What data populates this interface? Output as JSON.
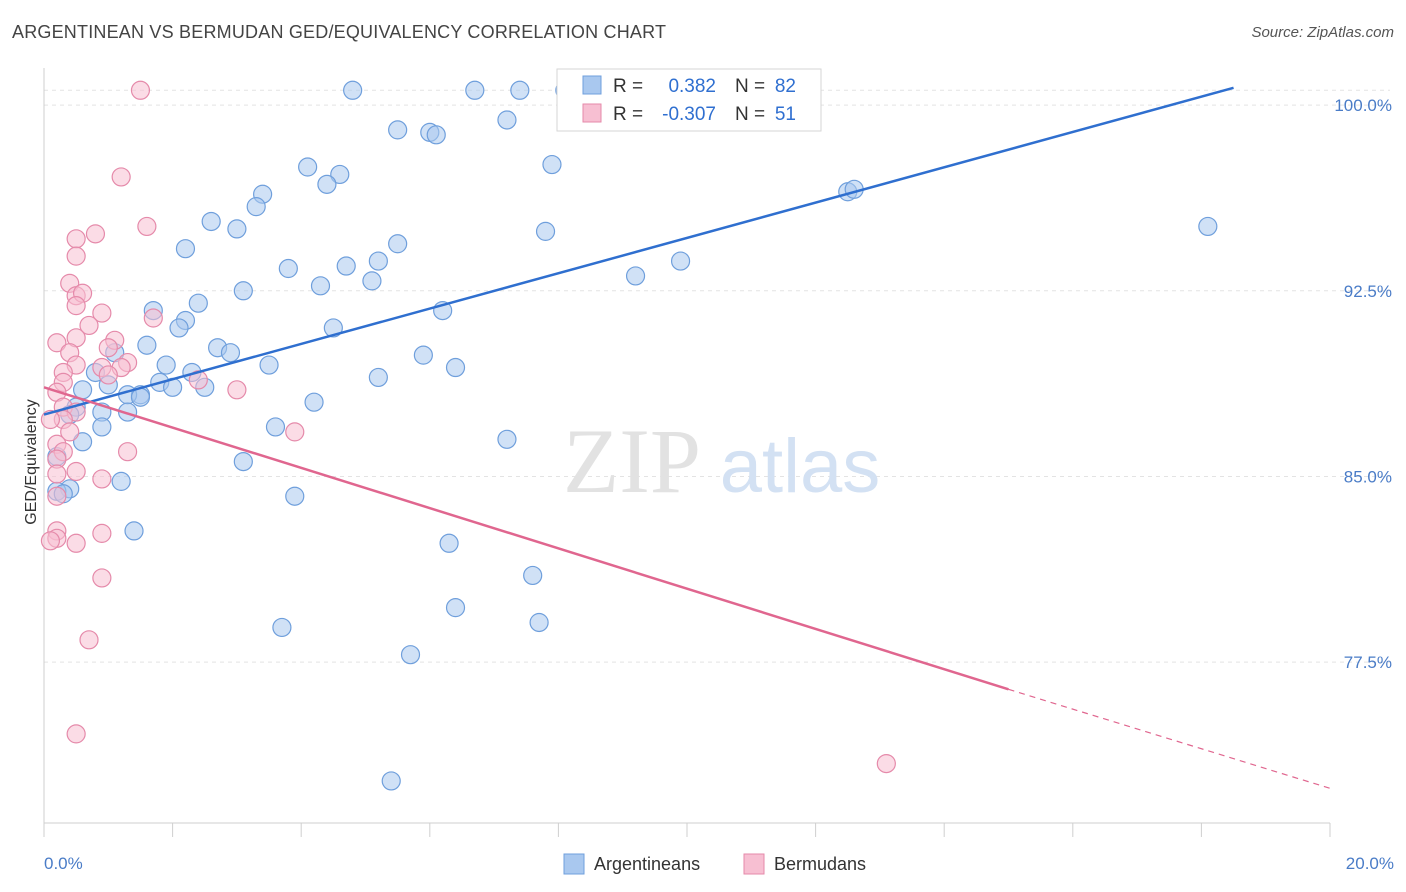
{
  "title": "ARGENTINEAN VS BERMUDAN GED/EQUIVALENCY CORRELATION CHART",
  "source": "Source: ZipAtlas.com",
  "watermark": {
    "zip": "ZIP",
    "atlas": "atlas"
  },
  "colors": {
    "blue_fill": "#a9c8ef",
    "blue_stroke": "#6f9fdc",
    "blue_line": "#2f6fcf",
    "pink_fill": "#f7bfd2",
    "pink_stroke": "#e58aaa",
    "pink_line": "#e0668f",
    "tick_label": "#4a7cc7"
  },
  "legend": {
    "rows": [
      {
        "r_label": "R =",
        "r_value": "0.382",
        "n_label": "N =",
        "n_value": "82"
      },
      {
        "r_label": "R =",
        "r_value": "-0.307",
        "n_label": "N =",
        "n_value": "51"
      }
    ]
  },
  "bottom_legend": [
    "Argentineans",
    "Bermudans"
  ],
  "chart_data": {
    "type": "scatter",
    "title": "ARGENTINEAN VS BERMUDAN GED/EQUIVALENCY CORRELATION CHART",
    "xlabel": "",
    "ylabel": "GED/Equivalency",
    "xlim": [
      0,
      20
    ],
    "ylim": [
      71,
      101.5
    ],
    "x_tick_labels": [
      "0.0%",
      "20.0%"
    ],
    "y_ticks": [
      77.5,
      85.0,
      92.5,
      100.0
    ],
    "y_tick_labels": [
      "77.5%",
      "85.0%",
      "92.5%",
      "100.0%"
    ],
    "grid": "horizontal dashed",
    "legend_placement": "top-center",
    "series": [
      {
        "name": "Argentineans",
        "r": 0.382,
        "n": 82,
        "trend": {
          "x": [
            0,
            18.5
          ],
          "y": [
            87.5,
            100.7
          ]
        },
        "points": [
          [
            4.8,
            100.6
          ],
          [
            6.7,
            100.6
          ],
          [
            7.4,
            100.6
          ],
          [
            8.1,
            100.6
          ],
          [
            8.6,
            100.6
          ],
          [
            9.0,
            100.6
          ],
          [
            9.5,
            100.6
          ],
          [
            5.5,
            99.0
          ],
          [
            6.0,
            98.9
          ],
          [
            6.1,
            98.8
          ],
          [
            7.2,
            99.4
          ],
          [
            4.1,
            97.5
          ],
          [
            4.6,
            97.2
          ],
          [
            7.9,
            97.6
          ],
          [
            4.4,
            96.8
          ],
          [
            3.4,
            96.4
          ],
          [
            3.3,
            95.9
          ],
          [
            12.5,
            96.5
          ],
          [
            12.6,
            96.6
          ],
          [
            2.6,
            95.3
          ],
          [
            3.0,
            95.0
          ],
          [
            7.8,
            94.9
          ],
          [
            18.1,
            95.1
          ],
          [
            2.2,
            94.2
          ],
          [
            5.5,
            94.4
          ],
          [
            3.8,
            93.4
          ],
          [
            4.7,
            93.5
          ],
          [
            5.2,
            93.7
          ],
          [
            9.9,
            93.7
          ],
          [
            5.1,
            92.9
          ],
          [
            3.1,
            92.5
          ],
          [
            4.3,
            92.7
          ],
          [
            9.2,
            93.1
          ],
          [
            2.4,
            92.0
          ],
          [
            2.2,
            91.3
          ],
          [
            6.2,
            91.7
          ],
          [
            1.7,
            91.7
          ],
          [
            2.1,
            91.0
          ],
          [
            4.5,
            91.0
          ],
          [
            1.6,
            90.3
          ],
          [
            2.7,
            90.2
          ],
          [
            2.9,
            90.0
          ],
          [
            5.9,
            89.9
          ],
          [
            1.1,
            90.0
          ],
          [
            1.9,
            89.5
          ],
          [
            3.5,
            89.5
          ],
          [
            6.4,
            89.4
          ],
          [
            0.8,
            89.2
          ],
          [
            2.3,
            89.2
          ],
          [
            5.2,
            89.0
          ],
          [
            1.8,
            88.8
          ],
          [
            2.5,
            88.6
          ],
          [
            0.6,
            88.5
          ],
          [
            1.0,
            88.7
          ],
          [
            1.5,
            88.3
          ],
          [
            2.0,
            88.6
          ],
          [
            1.3,
            88.3
          ],
          [
            4.2,
            88.0
          ],
          [
            1.5,
            88.2
          ],
          [
            0.5,
            87.8
          ],
          [
            1.3,
            87.6
          ],
          [
            0.9,
            87.6
          ],
          [
            0.4,
            87.5
          ],
          [
            3.6,
            87.0
          ],
          [
            0.9,
            87.0
          ],
          [
            7.2,
            86.5
          ],
          [
            0.6,
            86.4
          ],
          [
            0.2,
            85.8
          ],
          [
            3.1,
            85.6
          ],
          [
            1.2,
            84.8
          ],
          [
            0.4,
            84.5
          ],
          [
            0.2,
            84.4
          ],
          [
            0.3,
            84.3
          ],
          [
            3.9,
            84.2
          ],
          [
            1.4,
            82.8
          ],
          [
            6.3,
            82.3
          ],
          [
            7.6,
            81.0
          ],
          [
            6.4,
            79.7
          ],
          [
            7.7,
            79.1
          ],
          [
            3.7,
            78.9
          ],
          [
            5.7,
            77.8
          ],
          [
            5.4,
            72.7
          ]
        ]
      },
      {
        "name": "Bermudans",
        "r": -0.307,
        "n": 51,
        "trend": {
          "x": [
            0,
            15
          ],
          "y": [
            88.6,
            76.4
          ]
        },
        "trend_dashed": {
          "x": [
            15,
            20
          ],
          "y": [
            76.4,
            72.4
          ]
        },
        "points": [
          [
            1.5,
            100.6
          ],
          [
            1.2,
            97.1
          ],
          [
            1.6,
            95.1
          ],
          [
            0.5,
            94.6
          ],
          [
            0.8,
            94.8
          ],
          [
            0.5,
            93.9
          ],
          [
            0.4,
            92.8
          ],
          [
            0.5,
            92.3
          ],
          [
            0.6,
            92.4
          ],
          [
            0.5,
            91.9
          ],
          [
            0.9,
            91.6
          ],
          [
            0.7,
            91.1
          ],
          [
            0.5,
            90.6
          ],
          [
            0.2,
            90.4
          ],
          [
            1.1,
            90.5
          ],
          [
            1.7,
            91.4
          ],
          [
            0.4,
            90.0
          ],
          [
            1.0,
            90.2
          ],
          [
            0.5,
            89.5
          ],
          [
            1.3,
            89.6
          ],
          [
            0.3,
            89.2
          ],
          [
            0.9,
            89.4
          ],
          [
            1.2,
            89.4
          ],
          [
            0.3,
            88.8
          ],
          [
            1.0,
            89.1
          ],
          [
            0.2,
            88.4
          ],
          [
            0.3,
            87.8
          ],
          [
            2.4,
            88.9
          ],
          [
            3.0,
            88.5
          ],
          [
            0.5,
            87.6
          ],
          [
            0.3,
            87.3
          ],
          [
            0.1,
            87.3
          ],
          [
            0.4,
            86.8
          ],
          [
            3.9,
            86.8
          ],
          [
            0.2,
            86.3
          ],
          [
            0.3,
            86.0
          ],
          [
            0.2,
            85.7
          ],
          [
            1.3,
            86.0
          ],
          [
            0.5,
            85.2
          ],
          [
            0.2,
            85.1
          ],
          [
            0.9,
            84.9
          ],
          [
            0.2,
            84.2
          ],
          [
            0.2,
            82.8
          ],
          [
            0.9,
            82.7
          ],
          [
            0.2,
            82.5
          ],
          [
            0.1,
            82.4
          ],
          [
            0.5,
            82.3
          ],
          [
            0.9,
            80.9
          ],
          [
            0.7,
            78.4
          ],
          [
            0.5,
            74.6
          ],
          [
            13.1,
            73.4
          ]
        ]
      }
    ]
  }
}
